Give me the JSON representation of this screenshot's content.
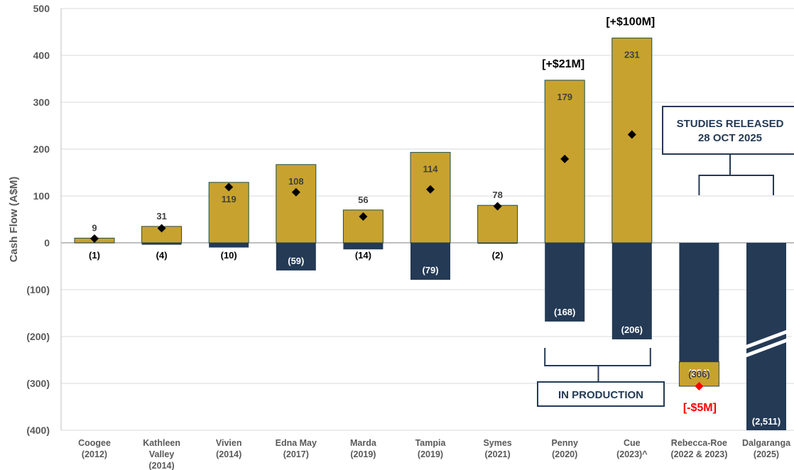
{
  "colors": {
    "gold": "#C8A22E",
    "navy": "#243A55",
    "grid": "#D9D9D9",
    "axis_text": "#595959",
    "red": "#FF0000",
    "dark_text": "#404040"
  },
  "chart_data": {
    "type": "bar",
    "ylabel": "Cash Flow (A$M)",
    "ylim": [
      -400,
      500
    ],
    "yticks": [
      {
        "value": 500,
        "label": "500"
      },
      {
        "value": 400,
        "label": "400"
      },
      {
        "value": 300,
        "label": "300"
      },
      {
        "value": 200,
        "label": "200"
      },
      {
        "value": 100,
        "label": "100"
      },
      {
        "value": 0,
        "label": "0"
      },
      {
        "value": -100,
        "label": "(100)"
      },
      {
        "value": -200,
        "label": "(200)"
      },
      {
        "value": -300,
        "label": "(300)"
      },
      {
        "value": -400,
        "label": "(400)"
      }
    ],
    "grid": true,
    "categories": [
      {
        "name": "Coogee",
        "lines": [
          "Coogee",
          "(2012)"
        ],
        "pos": 10,
        "neg": -1,
        "net": 9,
        "pos_label": "9",
        "neg_label": "(1)"
      },
      {
        "name": "Kathleen Valley",
        "lines": [
          "Kathleen",
          "Valley",
          "(2014)"
        ],
        "pos": 35,
        "neg": -4,
        "net": 31,
        "pos_label": "31",
        "neg_label": "(4)"
      },
      {
        "name": "Vivien",
        "lines": [
          "Vivien",
          "(2014)"
        ],
        "pos": 129,
        "neg": -10,
        "net": 119,
        "pos_label": "119",
        "neg_label": "(10)"
      },
      {
        "name": "Edna May",
        "lines": [
          "Edna May",
          "(2017)"
        ],
        "pos": 167,
        "neg": -59,
        "net": 108,
        "pos_label": "108",
        "neg_label": "(59)"
      },
      {
        "name": "Marda",
        "lines": [
          "Marda",
          "(2019)"
        ],
        "pos": 70,
        "neg": -14,
        "net": 56,
        "pos_label": "56",
        "neg_label": "(14)"
      },
      {
        "name": "Tampia",
        "lines": [
          "Tampia",
          "(2019)"
        ],
        "pos": 193,
        "neg": -79,
        "net": 114,
        "pos_label": "114",
        "neg_label": "(79)"
      },
      {
        "name": "Symes",
        "lines": [
          "Symes",
          "(2021)"
        ],
        "pos": 80,
        "neg": -2,
        "net": 78,
        "pos_label": "78",
        "neg_label": "(2)"
      },
      {
        "name": "Penny",
        "lines": [
          "Penny",
          "(2020)"
        ],
        "pos": 347,
        "neg": -168,
        "net": 179,
        "pos_label": "179",
        "neg_label": "(168)",
        "top_note": "[+$21M]"
      },
      {
        "name": "Cue",
        "lines": [
          "Cue",
          "(2023)^"
        ],
        "pos": 437,
        "neg": -206,
        "net": 231,
        "pos_label": "231",
        "neg_label": "(206)",
        "top_note": "[+$100M]"
      },
      {
        "name": "Rebecca-Roe",
        "lines": [
          "Rebecca-Roe",
          "(2022 & 2023)"
        ],
        "neg": -254,
        "gold_segment": [
          -306,
          -254
        ],
        "net": -306,
        "neg_label": "(254)",
        "gold_label": "(306)",
        "bottom_note": "[-$5M]"
      },
      {
        "name": "Dalgaranga",
        "lines": [
          "Dalgaranga",
          "(2025)"
        ],
        "neg": -2511,
        "truncated": true,
        "neg_label": "(2,511)"
      }
    ],
    "annotations": {
      "studies_lines": [
        "STUDIES RELEASED",
        "28 OCT 2025"
      ],
      "production_label": "IN PRODUCTION"
    }
  }
}
